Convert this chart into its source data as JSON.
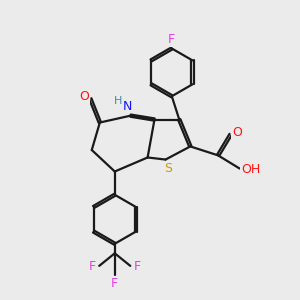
{
  "background_color": "#ebebeb",
  "bond_color": "#1a1a1a",
  "N_color": "#1414ff",
  "S_color": "#c8a000",
  "O_color": "#ff1414",
  "F_color": "#e040e0",
  "H_color": "#4488aa",
  "line_width": 1.6,
  "dbo": 0.045,
  "xlim": [
    0,
    10
  ],
  "ylim": [
    0,
    10
  ]
}
